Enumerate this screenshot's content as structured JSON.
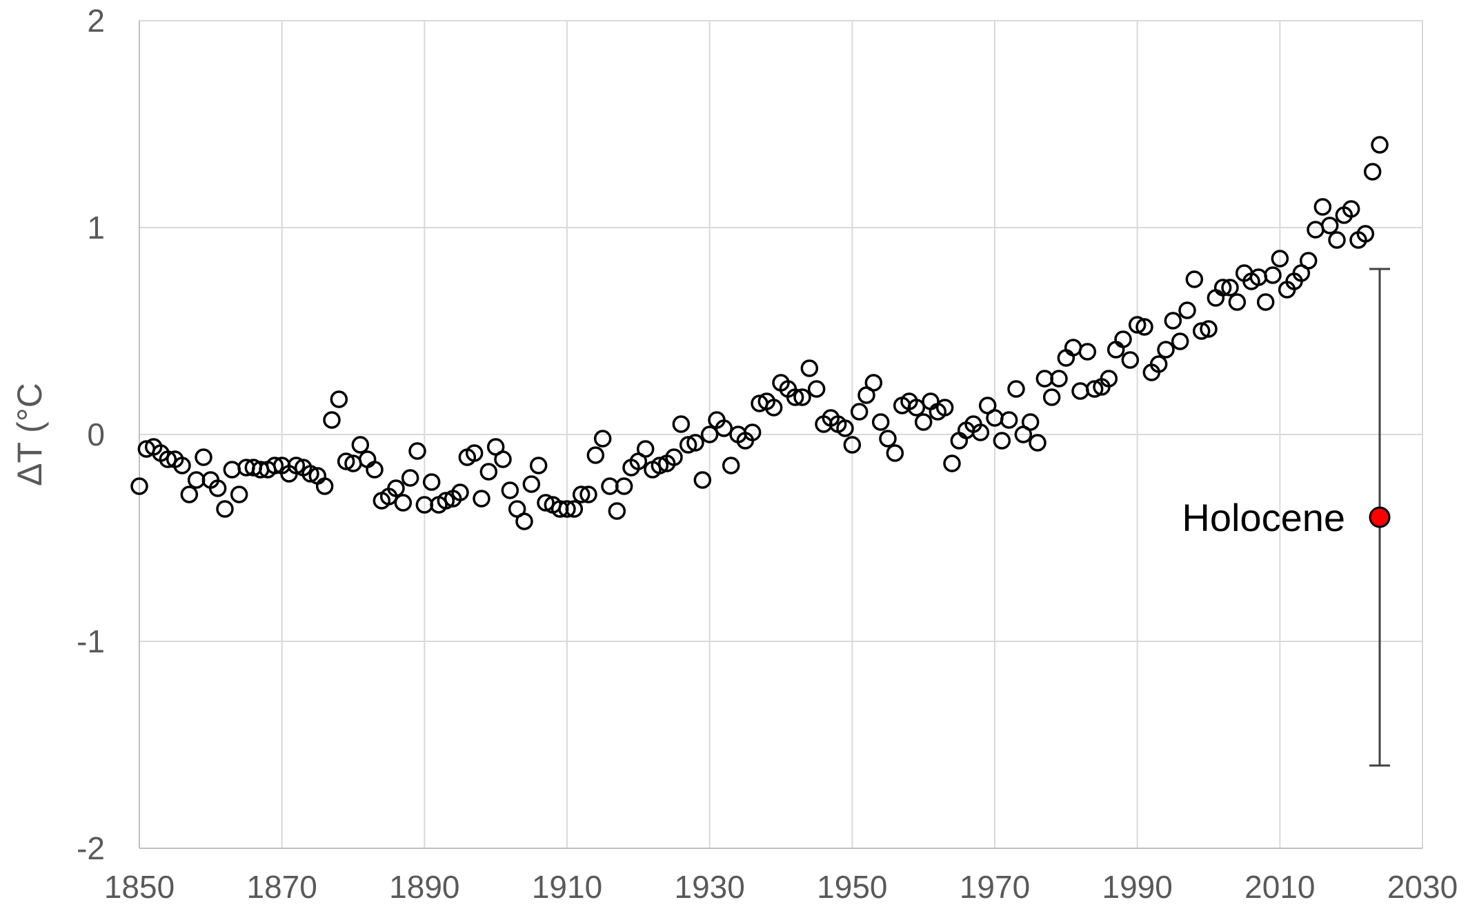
{
  "chart_data": {
    "type": "scatter",
    "ylabel": "ΔT (°C",
    "xlim": [
      1850,
      2030
    ],
    "ylim": [
      -2,
      2
    ],
    "xticks": [
      1850,
      1870,
      1890,
      1910,
      1930,
      1950,
      1970,
      1990,
      2010,
      2030
    ],
    "yticks": [
      -2,
      -1,
      0,
      1,
      2
    ],
    "grid": true,
    "colors": {
      "grid": "#d9d9d9",
      "marker_edge": "#000000",
      "highlight": "#ff0000",
      "errorbar": "#404040"
    },
    "series": [
      {
        "marker": "open-circle",
        "x": [
          1850,
          1851,
          1852,
          1853,
          1854,
          1855,
          1856,
          1857,
          1858,
          1859,
          1860,
          1861,
          1862,
          1863,
          1864,
          1865,
          1866,
          1867,
          1868,
          1869,
          1870,
          1871,
          1872,
          1873,
          1874,
          1875,
          1876,
          1877,
          1878,
          1879,
          1880,
          1881,
          1882,
          1883,
          1884,
          1885,
          1886,
          1887,
          1888,
          1889,
          1890,
          1891,
          1892,
          1893,
          1894,
          1895,
          1896,
          1897,
          1898,
          1899,
          1900,
          1901,
          1902,
          1903,
          1904,
          1905,
          1906,
          1907,
          1908,
          1909,
          1910,
          1911,
          1912,
          1913,
          1914,
          1915,
          1916,
          1917,
          1918,
          1919,
          1920,
          1921,
          1922,
          1923,
          1924,
          1925,
          1926,
          1927,
          1928,
          1929,
          1930,
          1931,
          1932,
          1933,
          1934,
          1935,
          1936,
          1937,
          1938,
          1939,
          1940,
          1941,
          1942,
          1943,
          1944,
          1945,
          1946,
          1947,
          1948,
          1949,
          1950,
          1951,
          1952,
          1953,
          1954,
          1955,
          1956,
          1957,
          1958,
          1959,
          1960,
          1961,
          1962,
          1963,
          1964,
          1965,
          1966,
          1967,
          1968,
          1969,
          1970,
          1971,
          1972,
          1973,
          1974,
          1975,
          1976,
          1977,
          1978,
          1979,
          1980,
          1981,
          1982,
          1983,
          1984,
          1985,
          1986,
          1987,
          1988,
          1989,
          1990,
          1991,
          1992,
          1993,
          1994,
          1995,
          1996,
          1997,
          1998,
          1999,
          2000,
          2001,
          2002,
          2003,
          2004,
          2005,
          2006,
          2007,
          2008,
          2009,
          2010,
          2011,
          2012,
          2013,
          2014,
          2015,
          2016,
          2017,
          2018,
          2019,
          2020,
          2021,
          2022,
          2023,
          2024
        ],
        "y": [
          -0.25,
          -0.07,
          -0.06,
          -0.09,
          -0.12,
          -0.12,
          -0.15,
          -0.29,
          -0.22,
          -0.11,
          -0.22,
          -0.26,
          -0.36,
          -0.17,
          -0.29,
          -0.16,
          -0.16,
          -0.17,
          -0.17,
          -0.15,
          -0.15,
          -0.19,
          -0.15,
          -0.16,
          -0.19,
          -0.2,
          -0.25,
          0.07,
          0.17,
          -0.13,
          -0.14,
          -0.05,
          -0.12,
          -0.17,
          -0.32,
          -0.3,
          -0.26,
          -0.33,
          -0.21,
          -0.08,
          -0.34,
          -0.23,
          -0.34,
          -0.32,
          -0.31,
          -0.28,
          -0.11,
          -0.09,
          -0.31,
          -0.18,
          -0.06,
          -0.12,
          -0.27,
          -0.36,
          -0.42,
          -0.24,
          -0.15,
          -0.33,
          -0.34,
          -0.36,
          -0.36,
          -0.36,
          -0.29,
          -0.29,
          -0.1,
          -0.02,
          -0.25,
          -0.37,
          -0.25,
          -0.16,
          -0.13,
          -0.07,
          -0.17,
          -0.15,
          -0.14,
          -0.11,
          0.05,
          -0.05,
          -0.04,
          -0.22,
          0.0,
          0.07,
          0.03,
          -0.15,
          0.0,
          -0.03,
          0.01,
          0.15,
          0.16,
          0.13,
          0.25,
          0.22,
          0.18,
          0.18,
          0.32,
          0.22,
          0.05,
          0.08,
          0.05,
          0.03,
          -0.05,
          0.11,
          0.19,
          0.25,
          0.06,
          -0.02,
          -0.09,
          0.14,
          0.16,
          0.13,
          0.06,
          0.16,
          0.11,
          0.13,
          -0.14,
          -0.03,
          0.02,
          0.05,
          0.01,
          0.14,
          0.08,
          -0.03,
          0.07,
          0.22,
          0.0,
          0.06,
          -0.04,
          0.27,
          0.18,
          0.27,
          0.37,
          0.42,
          0.21,
          0.4,
          0.22,
          0.23,
          0.27,
          0.41,
          0.46,
          0.36,
          0.53,
          0.52,
          0.3,
          0.34,
          0.41,
          0.55,
          0.45,
          0.6,
          0.75,
          0.5,
          0.51,
          0.66,
          0.71,
          0.71,
          0.64,
          0.78,
          0.74,
          0.76,
          0.64,
          0.77,
          0.85,
          0.7,
          0.74,
          0.78,
          0.84,
          0.99,
          1.1,
          1.01,
          0.94,
          1.06,
          1.09,
          0.94,
          0.97,
          1.27,
          1.4
        ]
      },
      {
        "name": "Holocene",
        "marker": "filled-circle",
        "x": [
          2024
        ],
        "y": [
          -0.4
        ],
        "errorbar": {
          "upper": 0.8,
          "lower": -1.6
        }
      }
    ],
    "annotations": [
      {
        "text": "Holocene",
        "x": 2024,
        "y": -0.4,
        "position": "left"
      }
    ]
  }
}
